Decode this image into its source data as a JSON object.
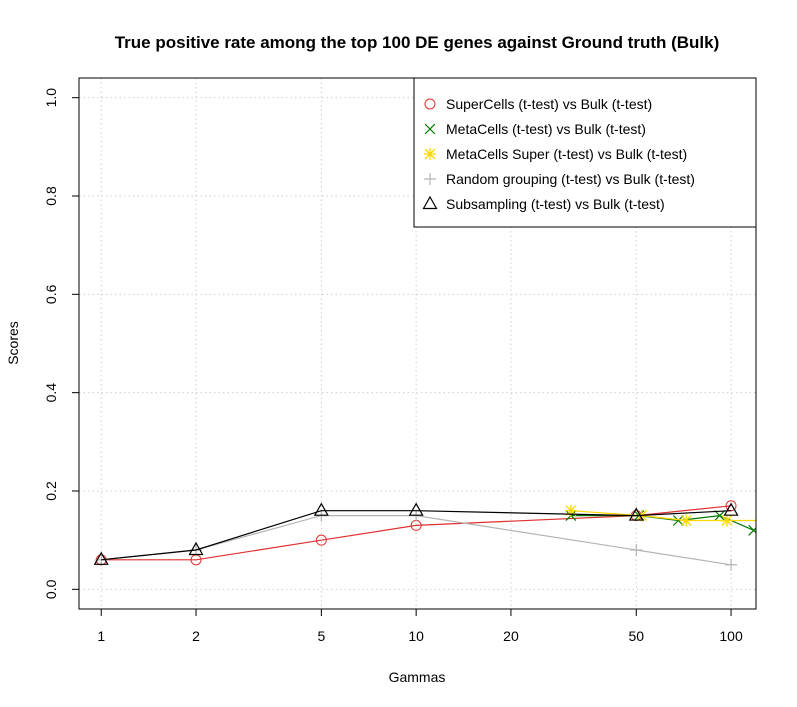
{
  "chart_data": {
    "type": "line",
    "title": "True positive rate among the top 100 DE genes against Ground truth (Bulk)",
    "xlabel": "Gammas",
    "ylabel": "Scores",
    "x_scale": "log",
    "xlim": [
      0.85,
      120
    ],
    "ylim": [
      -0.04,
      1.04
    ],
    "x_ticks": [
      1,
      2,
      5,
      10,
      20,
      50,
      100
    ],
    "x_tick_labels": [
      "1",
      "2",
      "5",
      "10",
      "20",
      "50",
      "100"
    ],
    "y_ticks": [
      0,
      0.2,
      0.4,
      0.6,
      0.8,
      1
    ],
    "y_tick_labels": [
      "0.0",
      "0.2",
      "0.4",
      "0.6",
      "0.8",
      "1.0"
    ],
    "grid": true,
    "legend_position": "top-right",
    "series": [
      {
        "name": "SuperCells (t-test) vs Bulk (t-test)",
        "color": "#e03030",
        "marker": "circle",
        "x": [
          1,
          2,
          5,
          10,
          50,
          100
        ],
        "y": [
          0.06,
          0.06,
          0.1,
          0.13,
          0.15,
          0.17
        ]
      },
      {
        "name": "MetaCells (t-test) vs Bulk (t-test)",
        "color": "#007a00",
        "marker": "x",
        "x": [
          31,
          51,
          68,
          92,
          118
        ],
        "y": [
          0.15,
          0.15,
          0.14,
          0.15,
          0.12
        ]
      },
      {
        "name": "MetaCells Super (t-test) vs Bulk (t-test)",
        "color": "#ffd700",
        "marker": "asterisk",
        "x": [
          31,
          52,
          72,
          97,
          125
        ],
        "y": [
          0.16,
          0.15,
          0.14,
          0.14,
          0.14
        ]
      },
      {
        "name": "Random grouping (t-test) vs Bulk (t-test)",
        "color": "#b4b4b4",
        "marker": "plus",
        "x": [
          1,
          2,
          5,
          10,
          50,
          100
        ],
        "y": [
          0.06,
          0.08,
          0.15,
          0.15,
          0.08,
          0.05
        ]
      },
      {
        "name": "Subsampling (t-test) vs Bulk (t-test)",
        "color": "#000000",
        "marker": "triangle",
        "x": [
          1,
          2,
          5,
          10,
          50,
          100
        ],
        "y": [
          0.06,
          0.08,
          0.16,
          0.16,
          0.15,
          0.16
        ]
      }
    ]
  }
}
